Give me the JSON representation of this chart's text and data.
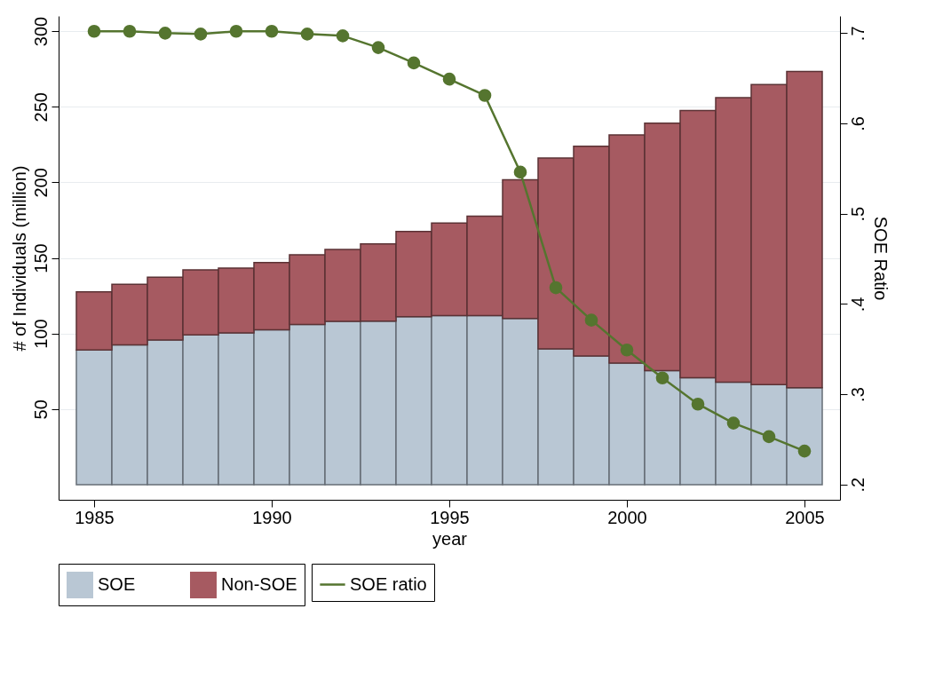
{
  "chart_data": {
    "type": "bar",
    "stacked": true,
    "xlabel": "year",
    "ylabel": "# of Individuals (million)",
    "y2label": "SOE Ratio",
    "x": [
      1985,
      1986,
      1987,
      1988,
      1989,
      1990,
      1991,
      1992,
      1993,
      1994,
      1995,
      1996,
      1997,
      1998,
      1999,
      2000,
      2001,
      2002,
      2003,
      2004,
      2005
    ],
    "series": [
      {
        "name": "SOE",
        "color": "#b9c7d4",
        "values": [
          89.1,
          92.5,
          95.7,
          99.0,
          100.4,
          102.4,
          106.0,
          108.0,
          108.2,
          111.1,
          111.8,
          111.8,
          110.0,
          89.8,
          85.1,
          80.4,
          75.4,
          70.7,
          67.8,
          66.2,
          64.2
        ]
      },
      {
        "name": "Non-SOE",
        "color": "#a65a61",
        "values": [
          38.4,
          40.0,
          41.5,
          43.1,
          42.9,
          44.5,
          46.0,
          47.6,
          51.0,
          56.4,
          61.2,
          65.8,
          91.6,
          126.2,
          138.8,
          150.9,
          163.7,
          176.8,
          188.2,
          198.5,
          209.1
        ]
      },
      {
        "name": "SOE ratio",
        "type": "line",
        "axis": "y2",
        "color": "#55752f",
        "values": [
          0.702,
          0.702,
          0.7,
          0.699,
          0.702,
          0.702,
          0.699,
          0.697,
          0.684,
          0.667,
          0.649,
          0.631,
          0.546,
          0.418,
          0.382,
          0.349,
          0.318,
          0.289,
          0.268,
          0.253,
          0.237
        ]
      }
    ],
    "xlim": [
      1984,
      2006
    ],
    "xticks": [
      1985,
      1990,
      1995,
      2000,
      2005
    ],
    "ylim": [
      -10,
      310
    ],
    "yticks": [
      50,
      100,
      150,
      200,
      250,
      300
    ],
    "y2lim": [
      0.183,
      0.719
    ],
    "y2ticks": [
      {
        "value": 0.2,
        "label": ".2"
      },
      {
        "value": 0.3,
        "label": ".3"
      },
      {
        "value": 0.4,
        "label": ".4"
      },
      {
        "value": 0.5,
        "label": ".5"
      },
      {
        "value": 0.6,
        "label": ".6"
      },
      {
        "value": 0.7,
        "label": ".7"
      }
    ],
    "grid": "y",
    "legend": "bottom",
    "marker": "circle",
    "line_style": "solid"
  }
}
